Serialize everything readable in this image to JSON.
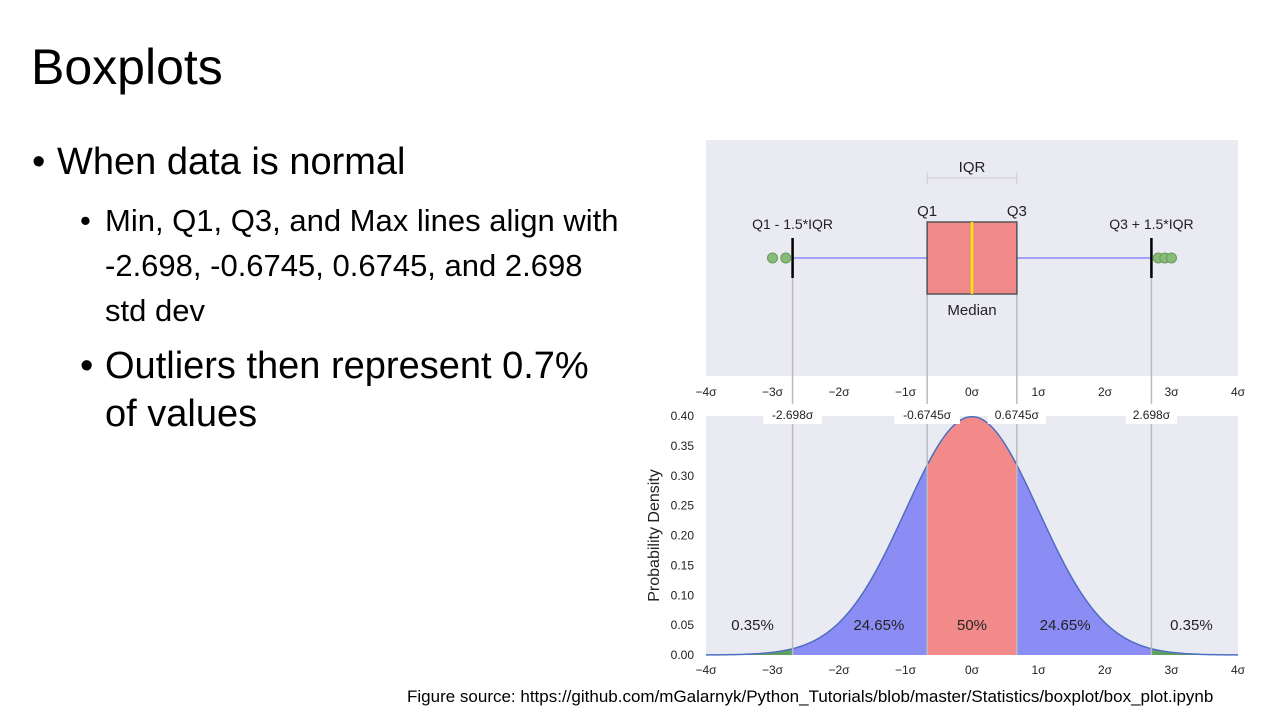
{
  "slide": {
    "title": "Boxplots",
    "bullet_l1": "When data is normal",
    "bullet_l2_a": "Min, Q1, Q3, and Max lines align with -2.698, -0.6745, 0.6745, and 2.698 std dev",
    "bullet_l2_b": "Outliers then represent 0.7% of values",
    "source": "Figure source:  https://github.com/mGalarnyk/Python_Tutorials/blob/master/Statistics/boxplot/box_plot.ipynb"
  },
  "chart_data": [
    {
      "type": "boxplot",
      "labels": {
        "iqr": "IQR",
        "q1": "Q1",
        "q3": "Q3",
        "lower_fence": "Q1 - 1.5*IQR",
        "upper_fence": "Q3 + 1.5*IQR",
        "median": "Median"
      },
      "stats": {
        "lower_whisker": -2.698,
        "q1": -0.6745,
        "median": 0,
        "q3": 0.6745,
        "upper_whisker": 2.698
      },
      "outliers": [
        -3.0,
        -2.8,
        2.8,
        2.9,
        3.0
      ],
      "xlim": [
        -4,
        4
      ],
      "xticks": [
        "−4σ",
        "−3σ",
        "−2σ",
        "−1σ",
        "0σ",
        "1σ",
        "2σ",
        "3σ",
        "4σ"
      ],
      "colors": {
        "box": "#f08a8a",
        "median": "#ffe600",
        "whisker": "#7777ff",
        "outlier": "#88bb77",
        "background": "#eaeaf2"
      }
    },
    {
      "type": "area",
      "ylabel": "Probability Density",
      "xlim": [
        -4,
        4
      ],
      "ylim": [
        0,
        0.4
      ],
      "yticks": [
        "0.00",
        "0.05",
        "0.10",
        "0.15",
        "0.20",
        "0.25",
        "0.30",
        "0.35",
        "0.40"
      ],
      "xticks": [
        "−4σ",
        "−3σ",
        "−2σ",
        "−1σ",
        "0σ",
        "1σ",
        "2σ",
        "3σ",
        "4σ"
      ],
      "markers": [
        {
          "x": -2.698,
          "label": "-2.698σ"
        },
        {
          "x": -0.6745,
          "label": "-0.6745σ"
        },
        {
          "x": 0.6745,
          "label": "0.6745σ"
        },
        {
          "x": 2.698,
          "label": "2.698σ"
        }
      ],
      "regions": [
        {
          "from": -4,
          "to": -2.698,
          "label": "0.35%",
          "color": "#5fa05f"
        },
        {
          "from": -2.698,
          "to": -0.6745,
          "label": "24.65%",
          "color": "#8c8cf5"
        },
        {
          "from": -0.6745,
          "to": 0.6745,
          "label": "50%",
          "color": "#f28a8a"
        },
        {
          "from": 0.6745,
          "to": 2.698,
          "label": "24.65%",
          "color": "#8c8cf5"
        },
        {
          "from": 2.698,
          "to": 4,
          "label": "0.35%",
          "color": "#5fa05f"
        }
      ],
      "colors": {
        "curve": "#4c6fc0",
        "background": "#eaeaf2",
        "marker_line": "#bbbbbb"
      }
    }
  ]
}
